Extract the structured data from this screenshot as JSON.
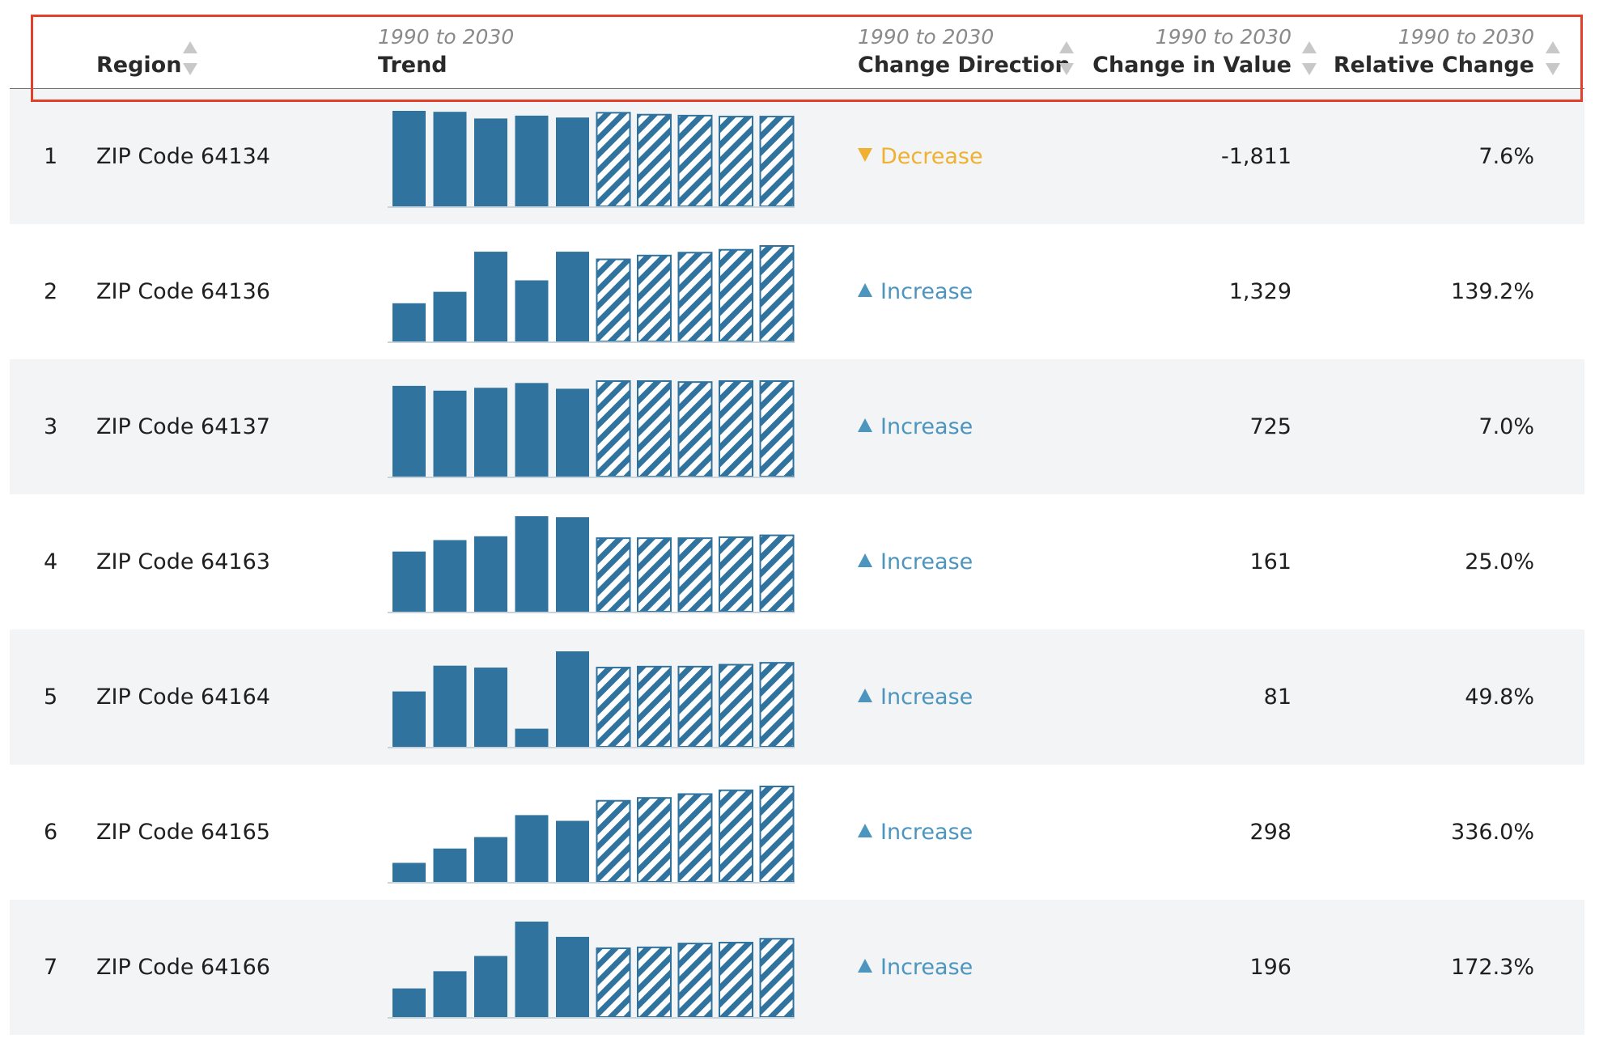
{
  "header": {
    "region": {
      "title": "Region"
    },
    "trend": {
      "sub": "1990 to 2030",
      "title": "Trend"
    },
    "direction": {
      "sub": "1990 to 2030",
      "title": "Change Direction"
    },
    "change_value": {
      "sub": "1990 to 2030",
      "title": "Change in Value"
    },
    "relative": {
      "sub": "1990 to 2030",
      "title": "Relative Change"
    }
  },
  "colors": {
    "bar": "#31739f",
    "increase": "#4b95bf",
    "decrease": "#f0b030",
    "highlight": "#e2402a"
  },
  "icons": {
    "sort": "sort-arrows-icon",
    "increase": "triangle-up-icon",
    "decrease": "triangle-down-icon"
  },
  "rows": [
    {
      "rank": "1",
      "region": "ZIP Code 64134",
      "direction": "Decrease",
      "dir": "down",
      "change": "-1,811",
      "relative": "7.6%"
    },
    {
      "rank": "2",
      "region": "ZIP Code 64136",
      "direction": "Increase",
      "dir": "up",
      "change": "1,329",
      "relative": "139.2%"
    },
    {
      "rank": "3",
      "region": "ZIP Code 64137",
      "direction": "Increase",
      "dir": "up",
      "change": "725",
      "relative": "7.0%"
    },
    {
      "rank": "4",
      "region": "ZIP Code 64163",
      "direction": "Increase",
      "dir": "up",
      "change": "161",
      "relative": "25.0%"
    },
    {
      "rank": "5",
      "region": "ZIP Code 64164",
      "direction": "Increase",
      "dir": "up",
      "change": "81",
      "relative": "49.8%"
    },
    {
      "rank": "6",
      "region": "ZIP Code 64165",
      "direction": "Increase",
      "dir": "up",
      "change": "298",
      "relative": "336.0%"
    },
    {
      "rank": "7",
      "region": "ZIP Code 64166",
      "direction": "Increase",
      "dir": "up",
      "change": "196",
      "relative": "172.3%"
    }
  ],
  "chart_data": {
    "type": "bar",
    "description_of_series": "relative bar heights as fraction of row maximum; first 5 bars solid (historical), last 5 hatched (projected)",
    "projected_from_index": 5,
    "series": [
      {
        "values": [
          1.0,
          0.99,
          0.92,
          0.95,
          0.93,
          0.98,
          0.96,
          0.95,
          0.94,
          0.94
        ]
      },
      {
        "values": [
          0.4,
          0.52,
          0.94,
          0.64,
          0.94,
          0.86,
          0.9,
          0.93,
          0.96,
          1.0
        ]
      },
      {
        "values": [
          0.95,
          0.9,
          0.93,
          0.98,
          0.92,
          1.0,
          1.0,
          0.99,
          1.0,
          1.0
        ]
      },
      {
        "values": [
          0.63,
          0.75,
          0.79,
          1.0,
          0.99,
          0.77,
          0.77,
          0.77,
          0.78,
          0.8
        ]
      },
      {
        "values": [
          0.58,
          0.85,
          0.83,
          0.19,
          1.0,
          0.83,
          0.84,
          0.84,
          0.86,
          0.88
        ]
      },
      {
        "values": [
          0.2,
          0.35,
          0.47,
          0.7,
          0.64,
          0.85,
          0.88,
          0.92,
          0.96,
          1.0
        ]
      },
      {
        "values": [
          0.3,
          0.48,
          0.64,
          1.0,
          0.84,
          0.72,
          0.73,
          0.77,
          0.78,
          0.82
        ]
      }
    ]
  }
}
